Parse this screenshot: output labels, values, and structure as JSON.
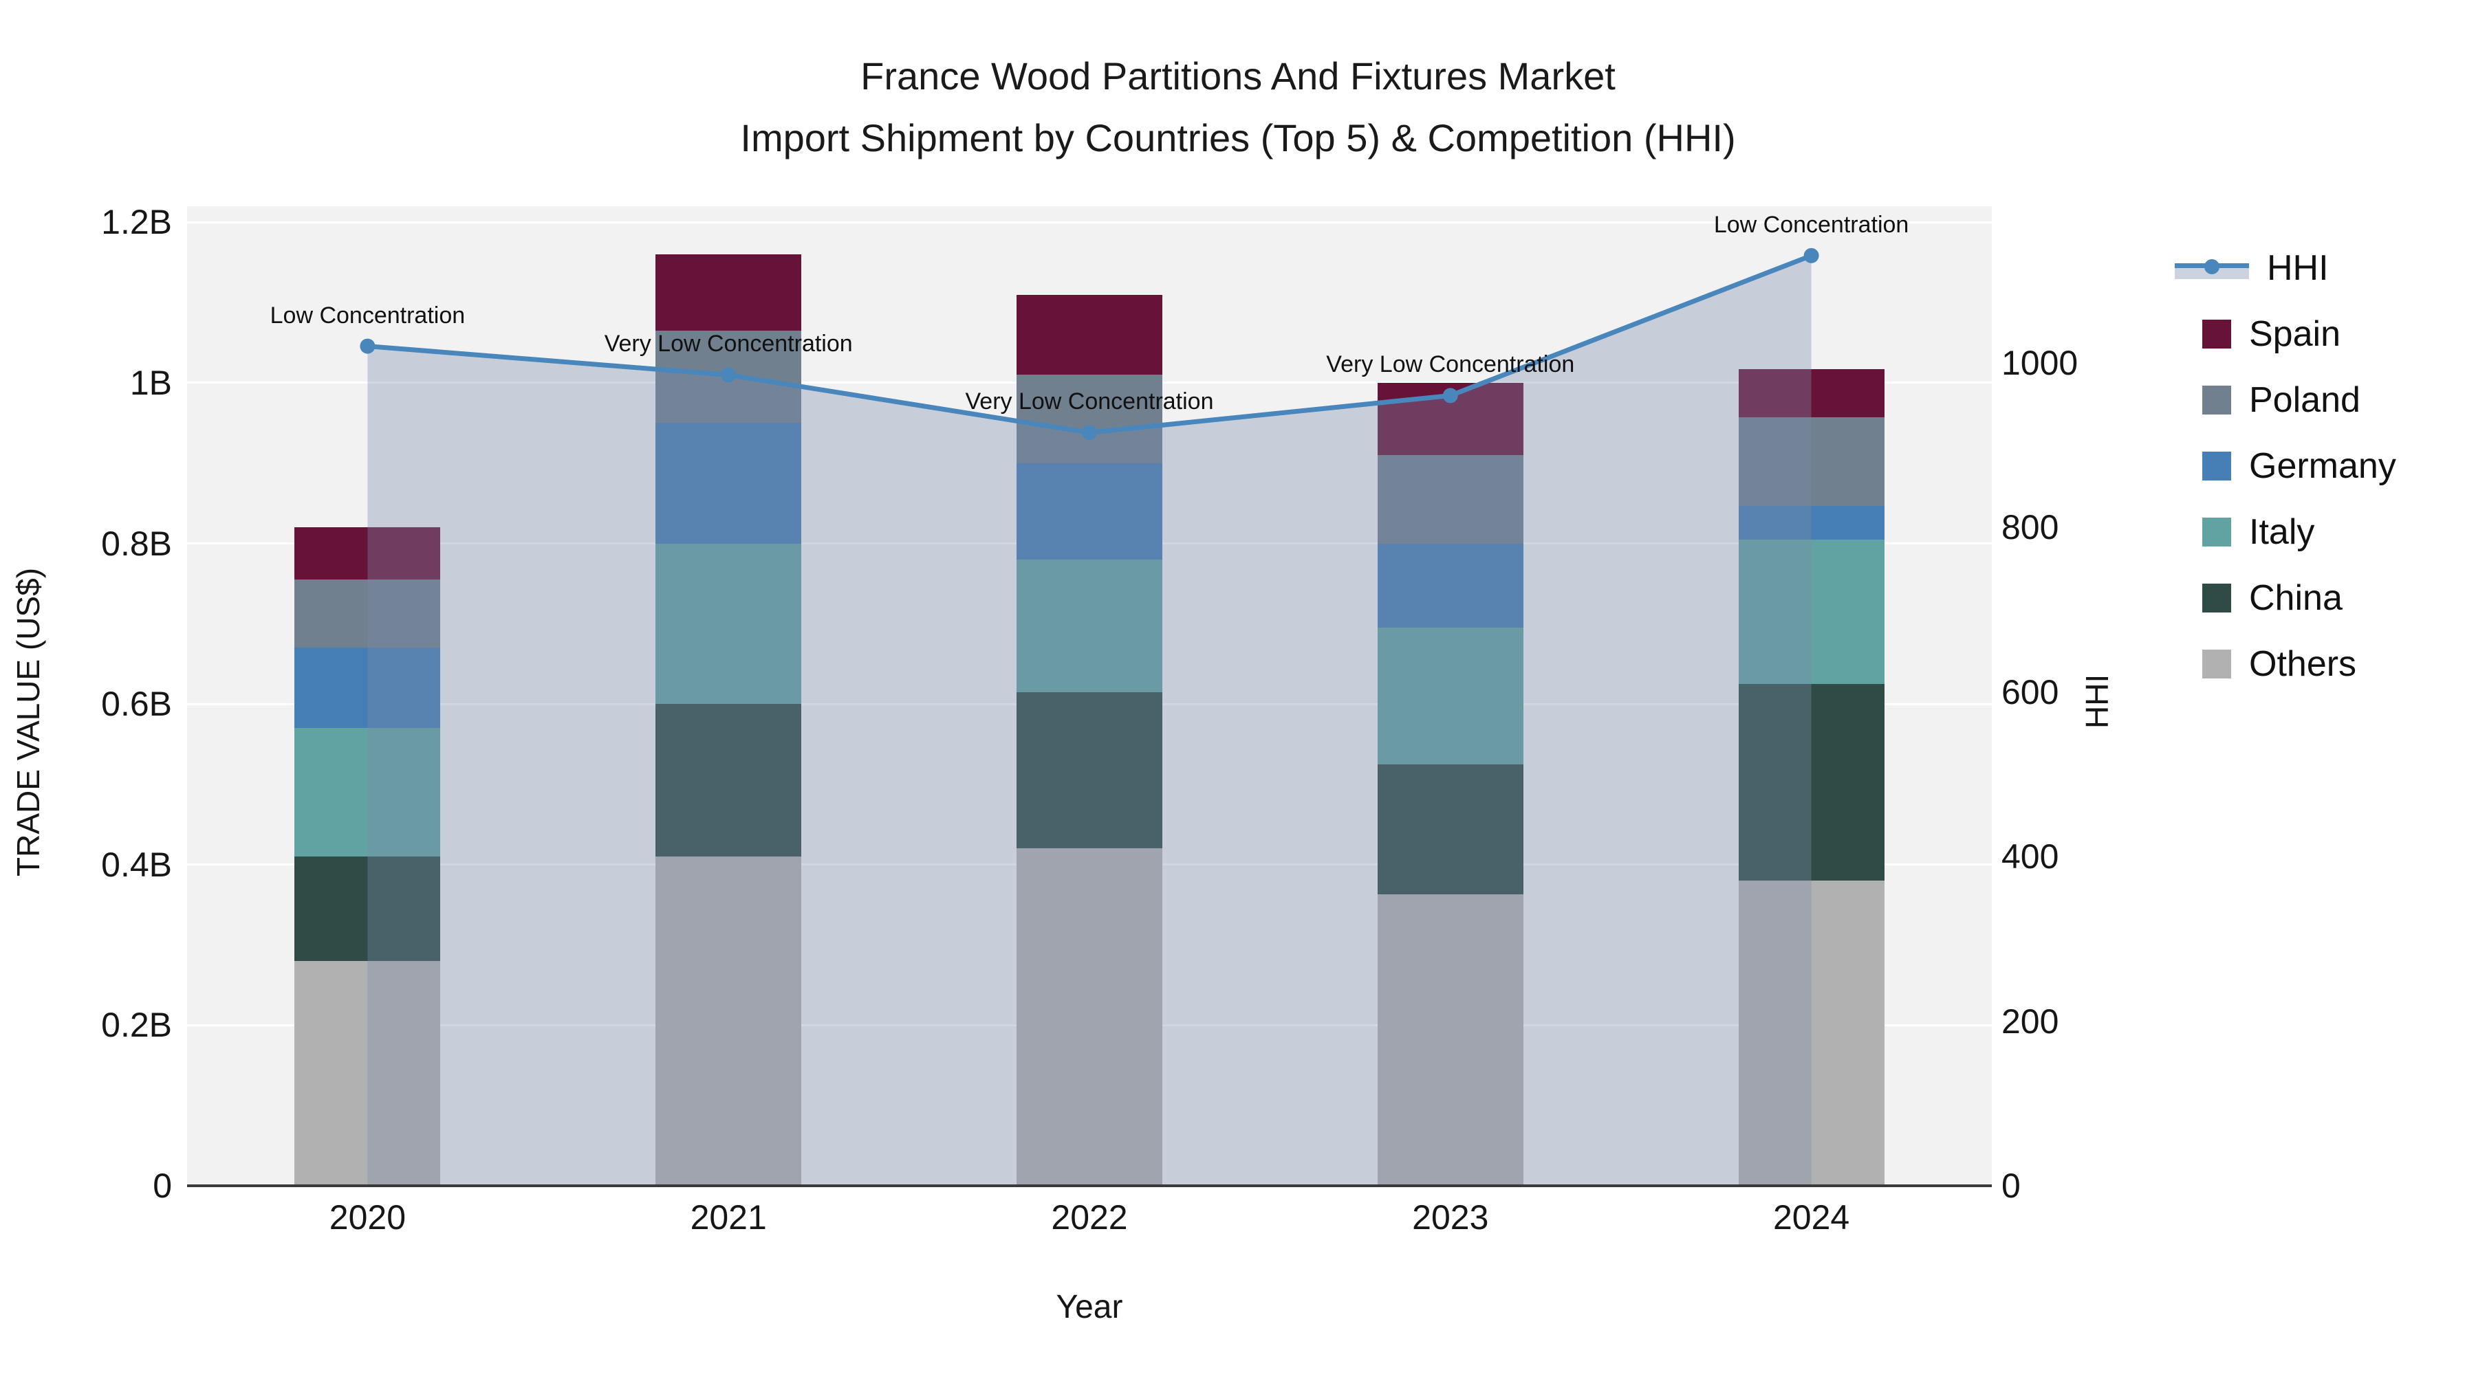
{
  "title": {
    "line1": "France Wood Partitions And Fixtures Market",
    "line2": "Import Shipment by Countries (Top 5) & Competition (HHI)"
  },
  "axes": {
    "x": {
      "title": "Year",
      "categories": [
        "2020",
        "2021",
        "2022",
        "2023",
        "2024"
      ]
    },
    "y_left": {
      "title": "TRADE VALUE (US$)",
      "tick_labels": [
        "0",
        "0.2B",
        "0.4B",
        "0.6B",
        "0.8B",
        "1B",
        "1.2B"
      ],
      "tick_values": [
        0,
        0.2,
        0.4,
        0.6,
        0.8,
        1.0,
        1.2
      ],
      "max": 1.22
    },
    "y_right": {
      "title": "HHI",
      "tick_labels": [
        "0",
        "200",
        "400",
        "600",
        "800",
        "1000"
      ],
      "tick_values": [
        0,
        200,
        400,
        600,
        800,
        1000
      ],
      "max": 1190
    }
  },
  "legend": {
    "items": [
      {
        "label": "HHI",
        "type": "line",
        "color": "#4886bc"
      },
      {
        "label": "Spain",
        "type": "swatch",
        "color": "#671338"
      },
      {
        "label": "Poland",
        "type": "swatch",
        "color": "#71808f"
      },
      {
        "label": "Germany",
        "type": "swatch",
        "color": "#467fb5"
      },
      {
        "label": "Italy",
        "type": "swatch",
        "color": "#61a3a3"
      },
      {
        "label": "China",
        "type": "swatch",
        "color": "#2e4b45"
      },
      {
        "label": "Others",
        "type": "swatch",
        "color": "#b2b1b1"
      }
    ]
  },
  "chart_data": {
    "type": "bar",
    "subtype": "stacked-bars-with-line-area-overlay",
    "categories": [
      "2020",
      "2021",
      "2022",
      "2023",
      "2024"
    ],
    "value_unit": "billion US$",
    "series": [
      {
        "name": "Spain",
        "color": "#671338",
        "values": [
          0.065,
          0.095,
          0.1,
          0.09,
          0.06
        ]
      },
      {
        "name": "Poland",
        "color": "#71808f",
        "values": [
          0.085,
          0.115,
          0.11,
          0.11,
          0.11
        ]
      },
      {
        "name": "Germany",
        "color": "#467fb5",
        "values": [
          0.1,
          0.15,
          0.12,
          0.105,
          0.042
        ]
      },
      {
        "name": "Italy",
        "color": "#61a3a3",
        "values": [
          0.16,
          0.2,
          0.165,
          0.17,
          0.18
        ]
      },
      {
        "name": "China",
        "color": "#2e4b45",
        "values": [
          0.13,
          0.19,
          0.195,
          0.162,
          0.245
        ]
      },
      {
        "name": "Others",
        "color": "#b2b1b1",
        "values": [
          0.28,
          0.41,
          0.42,
          0.363,
          0.38
        ]
      }
    ],
    "stack_order_bottom_to_top": [
      "Others",
      "China",
      "Italy",
      "Germany",
      "Poland",
      "Spain"
    ],
    "line_series": {
      "name": "HHI",
      "axis": "right",
      "color": "#4886bc",
      "area_fill": "rgba(124,141,169,0.35)",
      "values": [
        1020,
        985,
        915,
        960,
        1130
      ],
      "annotations": [
        "Low Concentration",
        "Very Low Concentration",
        "Very Low Concentration",
        "Very Low Concentration",
        "Low Concentration"
      ]
    },
    "layout_hints": {
      "plot_bg": "#f2f2f3",
      "grid_color": "#ffffff",
      "axis_line_color": "#3a3a3a",
      "grid": "horizontal",
      "legend_position": "right"
    }
  }
}
